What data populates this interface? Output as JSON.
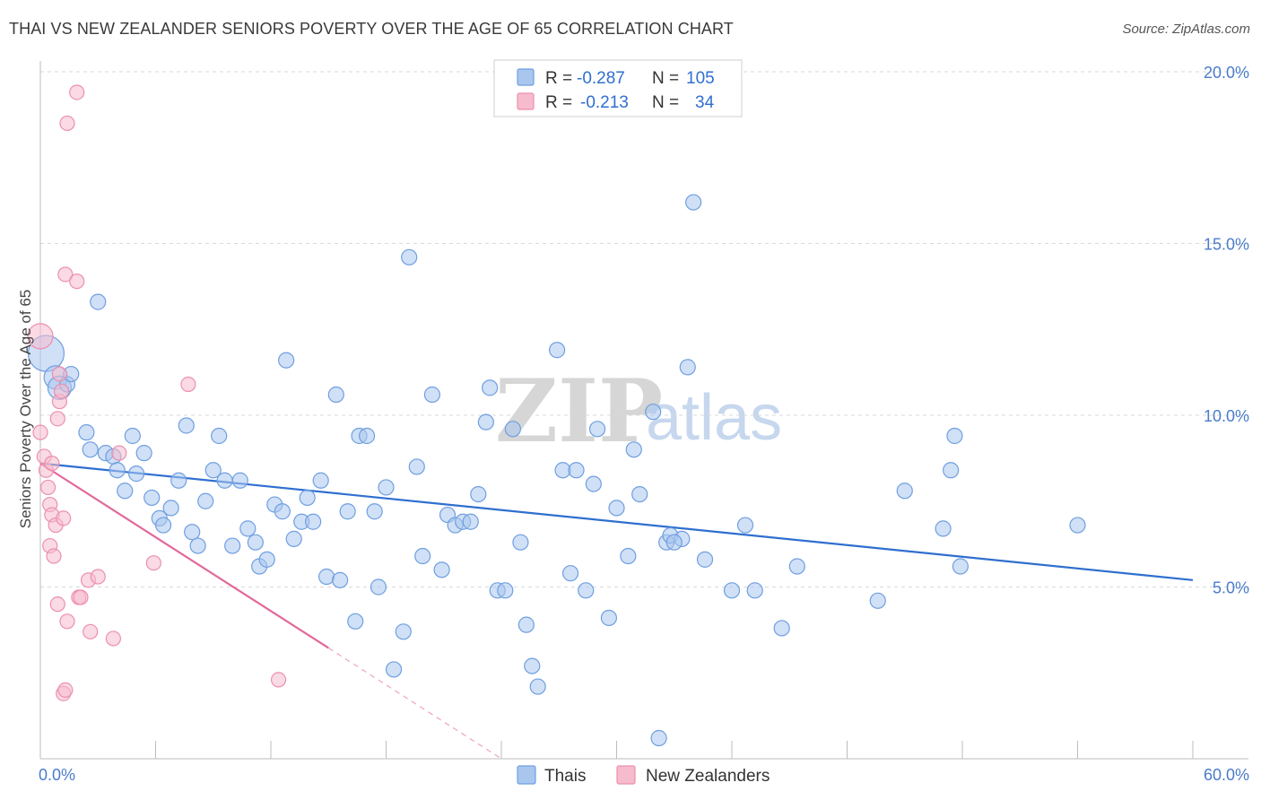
{
  "header": {
    "title": "THAI VS NEW ZEALANDER SENIORS POVERTY OVER THE AGE OF 65 CORRELATION CHART",
    "source": "Source: ZipAtlas.com"
  },
  "legend": {
    "rows": [
      {
        "r_label": "R =",
        "r_value": "-0.287",
        "n_label": "N =",
        "n_value": "105"
      },
      {
        "r_label": "R =",
        "r_value": "-0.213",
        "n_label": "N =",
        "n_value": "34"
      }
    ]
  },
  "bottom_legend": {
    "thais": "Thais",
    "new_zealanders": "New Zealanders"
  },
  "watermark": {
    "zip": "ZIP",
    "atlas": "atlas"
  },
  "colors": {
    "thais_fill": "#a9c6ee",
    "thais_stroke": "#6f9fe0",
    "thais_line": "#2f6fd0",
    "nz_fill": "#f6bccd",
    "nz_stroke": "#ec8fae",
    "nz_line": "#e2689a",
    "tick_text": "#4a7cc9",
    "grid": "#d9d9d9"
  },
  "chart_data": {
    "type": "scatter",
    "title": "THAI VS NEW ZEALANDER SENIORS POVERTY OVER THE AGE OF 65 CORRELATION CHART",
    "xlabel": "",
    "ylabel": "Seniors Poverty Over the Age of 65",
    "xlim": [
      0,
      60
    ],
    "ylim": [
      0,
      20
    ],
    "x_tick_labels": [
      "0.0%",
      "60.0%"
    ],
    "y_ticks": [
      5,
      10,
      15,
      20
    ],
    "y_tick_labels": [
      "5.0%",
      "10.0%",
      "15.0%",
      "20.0%"
    ],
    "grid": "horizontal dashed",
    "legend_position": "top-center",
    "series": [
      {
        "name": "Thais",
        "r": -0.287,
        "n": 105,
        "trend": {
          "x": [
            0,
            60
          ],
          "y": [
            8.6,
            5.2
          ],
          "solid_to": 60
        },
        "points": [
          [
            0.3,
            11.8
          ],
          [
            0.8,
            11.1
          ],
          [
            1.0,
            10.8
          ],
          [
            1.4,
            10.9
          ],
          [
            1.6,
            11.2
          ],
          [
            2.4,
            9.5
          ],
          [
            2.6,
            9.0
          ],
          [
            3.0,
            13.3
          ],
          [
            3.4,
            8.9
          ],
          [
            3.8,
            8.8
          ],
          [
            4.0,
            8.4
          ],
          [
            4.4,
            7.8
          ],
          [
            4.8,
            9.4
          ],
          [
            5.0,
            8.3
          ],
          [
            5.4,
            8.9
          ],
          [
            5.8,
            7.6
          ],
          [
            6.2,
            7.0
          ],
          [
            6.4,
            6.8
          ],
          [
            6.8,
            7.3
          ],
          [
            7.2,
            8.1
          ],
          [
            7.6,
            9.7
          ],
          [
            7.9,
            6.6
          ],
          [
            8.2,
            6.2
          ],
          [
            8.6,
            7.5
          ],
          [
            9.0,
            8.4
          ],
          [
            9.3,
            9.4
          ],
          [
            9.6,
            8.1
          ],
          [
            10.0,
            6.2
          ],
          [
            10.4,
            8.1
          ],
          [
            10.8,
            6.7
          ],
          [
            11.2,
            6.3
          ],
          [
            11.4,
            5.6
          ],
          [
            11.8,
            5.8
          ],
          [
            12.2,
            7.4
          ],
          [
            12.6,
            7.2
          ],
          [
            12.8,
            11.6
          ],
          [
            13.2,
            6.4
          ],
          [
            13.6,
            6.9
          ],
          [
            13.9,
            7.6
          ],
          [
            14.2,
            6.9
          ],
          [
            14.6,
            8.1
          ],
          [
            14.9,
            5.3
          ],
          [
            15.4,
            10.6
          ],
          [
            15.6,
            5.2
          ],
          [
            16.0,
            7.2
          ],
          [
            16.4,
            4.0
          ],
          [
            16.6,
            9.4
          ],
          [
            17.0,
            9.4
          ],
          [
            17.4,
            7.2
          ],
          [
            17.6,
            5.0
          ],
          [
            18.0,
            7.9
          ],
          [
            18.4,
            2.6
          ],
          [
            18.9,
            3.7
          ],
          [
            19.2,
            14.6
          ],
          [
            19.6,
            8.5
          ],
          [
            19.9,
            5.9
          ],
          [
            20.4,
            10.6
          ],
          [
            20.9,
            5.5
          ],
          [
            21.2,
            7.1
          ],
          [
            21.6,
            6.8
          ],
          [
            22.0,
            6.9
          ],
          [
            22.4,
            6.9
          ],
          [
            22.8,
            7.7
          ],
          [
            23.2,
            9.8
          ],
          [
            23.4,
            10.8
          ],
          [
            23.8,
            4.9
          ],
          [
            24.2,
            4.9
          ],
          [
            24.6,
            9.6
          ],
          [
            25.0,
            6.3
          ],
          [
            25.3,
            3.9
          ],
          [
            25.6,
            2.7
          ],
          [
            25.9,
            2.1
          ],
          [
            26.9,
            11.9
          ],
          [
            27.2,
            8.4
          ],
          [
            27.6,
            5.4
          ],
          [
            27.9,
            8.4
          ],
          [
            28.4,
            4.9
          ],
          [
            28.8,
            8.0
          ],
          [
            29.0,
            9.6
          ],
          [
            29.6,
            4.1
          ],
          [
            30.0,
            7.3
          ],
          [
            30.6,
            5.9
          ],
          [
            30.9,
            9.0
          ],
          [
            31.2,
            7.7
          ],
          [
            31.9,
            10.1
          ],
          [
            32.2,
            0.6
          ],
          [
            32.6,
            6.3
          ],
          [
            32.8,
            6.5
          ],
          [
            33.4,
            6.4
          ],
          [
            33.7,
            11.4
          ],
          [
            34.0,
            16.2
          ],
          [
            34.6,
            5.8
          ],
          [
            36.0,
            4.9
          ],
          [
            36.7,
            6.8
          ],
          [
            37.2,
            4.9
          ],
          [
            38.6,
            3.8
          ],
          [
            39.4,
            5.6
          ],
          [
            43.6,
            4.6
          ],
          [
            45.0,
            7.8
          ],
          [
            47.0,
            6.7
          ],
          [
            47.4,
            8.4
          ],
          [
            47.6,
            9.4
          ],
          [
            47.9,
            5.6
          ],
          [
            54.0,
            6.8
          ],
          [
            33.0,
            6.3
          ]
        ]
      },
      {
        "name": "New Zealanders",
        "r": -0.213,
        "n": 34,
        "trend": {
          "x": [
            0,
            24
          ],
          "y": [
            8.6,
            0.0
          ],
          "solid_to": 15
        },
        "points": [
          [
            0.0,
            12.3
          ],
          [
            0.0,
            9.5
          ],
          [
            0.2,
            8.8
          ],
          [
            0.3,
            8.4
          ],
          [
            0.4,
            7.9
          ],
          [
            0.5,
            7.4
          ],
          [
            0.5,
            6.2
          ],
          [
            0.6,
            7.1
          ],
          [
            0.7,
            5.9
          ],
          [
            0.8,
            6.8
          ],
          [
            0.9,
            4.5
          ],
          [
            0.9,
            9.9
          ],
          [
            1.0,
            10.4
          ],
          [
            1.0,
            11.2
          ],
          [
            1.1,
            10.7
          ],
          [
            1.2,
            7.0
          ],
          [
            1.2,
            1.9
          ],
          [
            1.3,
            14.1
          ],
          [
            1.3,
            2.0
          ],
          [
            1.4,
            18.5
          ],
          [
            1.4,
            4.0
          ],
          [
            1.9,
            19.4
          ],
          [
            1.9,
            13.9
          ],
          [
            2.0,
            4.7
          ],
          [
            2.1,
            4.7
          ],
          [
            2.5,
            5.2
          ],
          [
            2.6,
            3.7
          ],
          [
            3.0,
            5.3
          ],
          [
            3.8,
            3.5
          ],
          [
            4.1,
            8.9
          ],
          [
            5.9,
            5.7
          ],
          [
            7.7,
            10.9
          ],
          [
            12.4,
            2.3
          ],
          [
            0.6,
            8.6
          ]
        ]
      }
    ]
  }
}
